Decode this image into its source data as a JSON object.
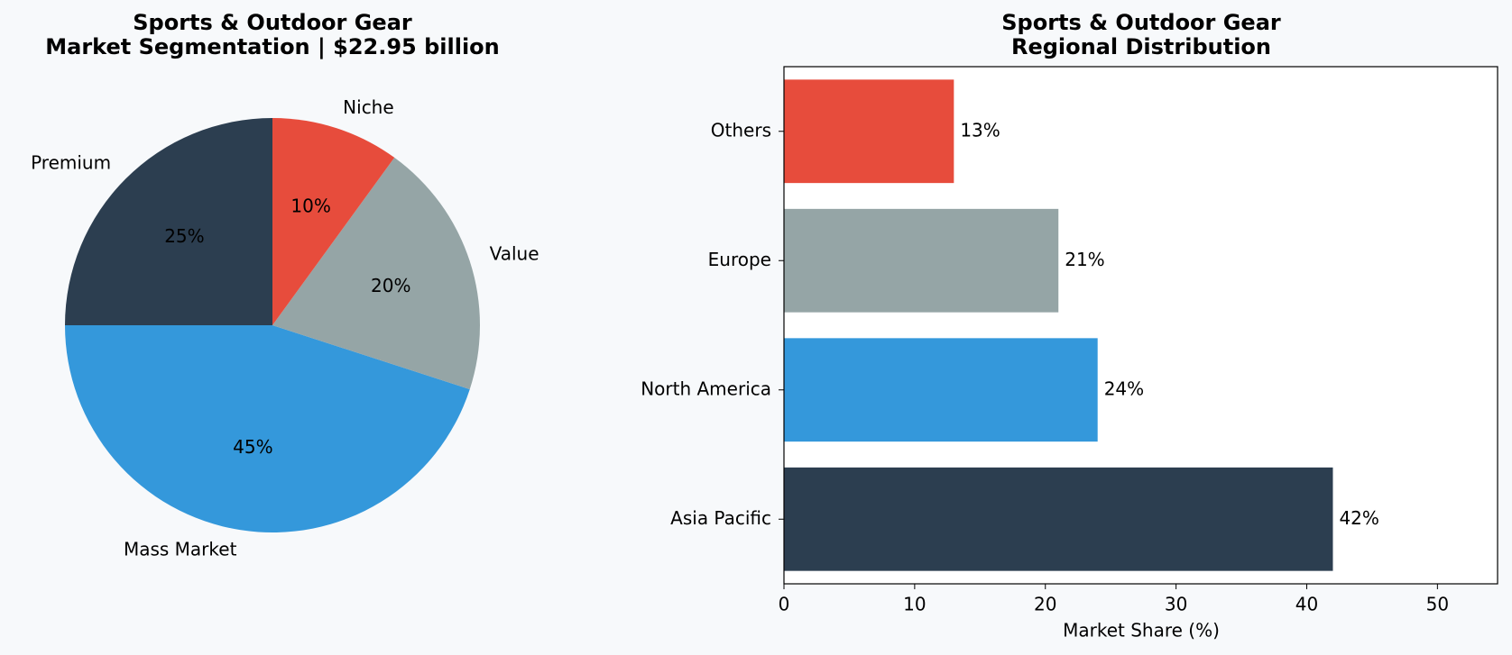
{
  "chart_data": [
    {
      "type": "pie",
      "title": "Sports & Outdoor Gear",
      "subtitle": "Market Segmentation | $22.95 billion",
      "categories": [
        "Premium",
        "Mass Market",
        "Value",
        "Niche"
      ],
      "values": [
        25,
        45,
        20,
        10
      ],
      "value_labels": [
        "25%",
        "45%",
        "20%",
        "10%"
      ],
      "colors": [
        "#2c3e50",
        "#3498db",
        "#95a5a6",
        "#e74c3c"
      ]
    },
    {
      "type": "barh",
      "title": "Sports & Outdoor Gear",
      "subtitle": "Regional Distribution",
      "categories": [
        "Asia Pacific",
        "North America",
        "Europe",
        "Others"
      ],
      "values": [
        42,
        24,
        21,
        13
      ],
      "value_labels": [
        "42%",
        "24%",
        "21%",
        "13%"
      ],
      "colors": [
        "#2c3e50",
        "#3498db",
        "#95a5a6",
        "#e74c3c"
      ],
      "xlabel": "Market Share (%)",
      "xlim": [
        0,
        54.6
      ],
      "xticks": [
        0,
        10,
        20,
        30,
        40,
        50
      ]
    }
  ]
}
